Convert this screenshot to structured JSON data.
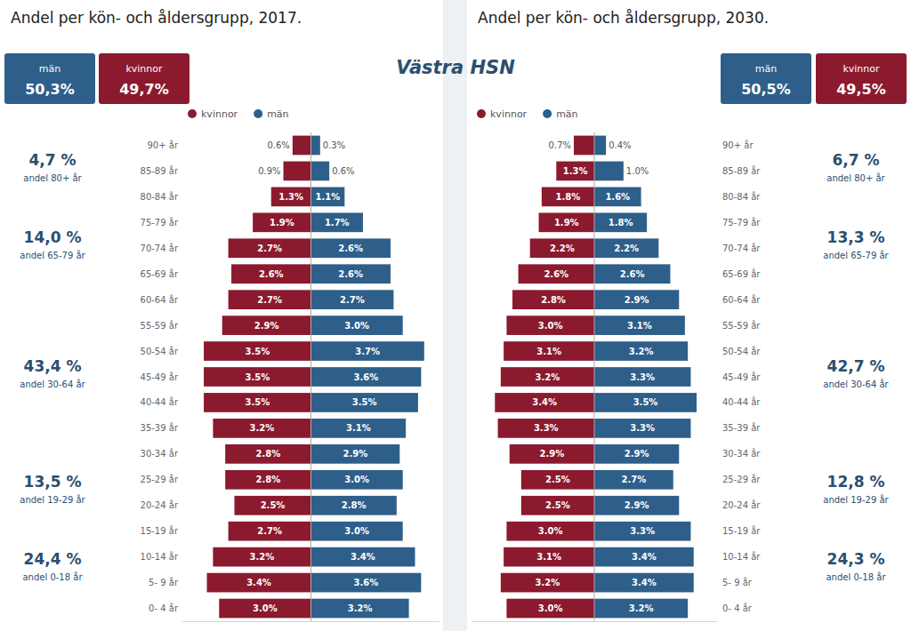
{
  "title": "Västra HSN",
  "chart_data": [
    {
      "type": "bar",
      "orientation": "horizontal",
      "title": "Andel per kön- och åldersgrupp, 2017.",
      "categories": [
        "90+ år",
        "85-89 år",
        "80-84 år",
        "75-79 år",
        "70-74 år",
        "65-69 år",
        "60-64 år",
        "55-59 år",
        "50-54 år",
        "45-49 år",
        "40-44 år",
        "35-39 år",
        "30-34 år",
        "25-29 år",
        "20-24 år",
        "15-19 år",
        "10-14 år",
        "5- 9 år",
        "0- 4 år"
      ],
      "series": [
        {
          "name": "kvinnor",
          "color": "#8B1A2E",
          "values": [
            0.6,
            0.9,
            1.3,
            1.9,
            2.7,
            2.6,
            2.7,
            2.9,
            3.5,
            3.5,
            3.5,
            3.2,
            2.8,
            2.8,
            2.5,
            2.7,
            3.2,
            3.4,
            3.0
          ],
          "value_labels": [
            "0.6%",
            "0.9%",
            "1.3%",
            "1.9%",
            "2.7%",
            "2.6%",
            "2.7%",
            "2.9%",
            "3.5%",
            "3.5%",
            "3.5%",
            "3.2%",
            "2.8%",
            "2.8%",
            "2.5%",
            "2.7%",
            "3.2%",
            "3.4%",
            "3.0%"
          ],
          "share": 49.7,
          "share_label": "49,7%"
        },
        {
          "name": "män",
          "color": "#2E5F8A",
          "values": [
            0.3,
            0.6,
            1.1,
            1.7,
            2.6,
            2.6,
            2.7,
            3.0,
            3.7,
            3.6,
            3.5,
            3.1,
            2.9,
            3.0,
            2.8,
            3.0,
            3.4,
            3.6,
            3.2
          ],
          "value_labels": [
            "0.3%",
            "0.6%",
            "1.1%",
            "1.7%",
            "2.6%",
            "2.6%",
            "2.7%",
            "3.0%",
            "3.7%",
            "3.6%",
            "3.5%",
            "3.1%",
            "2.9%",
            "3.0%",
            "2.8%",
            "3.0%",
            "3.4%",
            "3.6%",
            "3.2%"
          ],
          "share": 50.3,
          "share_label": "50,3%"
        }
      ],
      "annotations": [
        {
          "label": "andel 80+ år",
          "value": 4.7,
          "value_label": "4,7 %"
        },
        {
          "label": "andel 65-79 år",
          "value": 14.0,
          "value_label": "14,0 %"
        },
        {
          "label": "andel 30-64 år",
          "value": 43.4,
          "value_label": "43,4 %"
        },
        {
          "label": "andel 19-29 år",
          "value": 13.5,
          "value_label": "13,5 %"
        },
        {
          "label": "andel 0-18 år",
          "value": 24.4,
          "value_label": "24,4 %"
        }
      ],
      "xlim": [
        -4.2,
        4.2
      ],
      "tick_labels": false,
      "grid": false,
      "legend": "top",
      "data_labels": true
    },
    {
      "type": "bar",
      "orientation": "horizontal",
      "title": "Andel per kön- och åldersgrupp, 2030.",
      "categories": [
        "90+ år",
        "85-89 år",
        "80-84 år",
        "75-79 år",
        "70-74 år",
        "65-69 år",
        "60-64 år",
        "55-59 år",
        "50-54 år",
        "45-49 år",
        "40-44 år",
        "35-39 år",
        "30-34 år",
        "25-29 år",
        "20-24 år",
        "15-19 år",
        "10-14 år",
        "5- 9 år",
        "0- 4 år"
      ],
      "series": [
        {
          "name": "kvinnor",
          "color": "#8B1A2E",
          "values": [
            0.7,
            1.3,
            1.8,
            1.9,
            2.2,
            2.6,
            2.8,
            3.0,
            3.1,
            3.2,
            3.4,
            3.3,
            2.9,
            2.5,
            2.5,
            3.0,
            3.1,
            3.2,
            3.0
          ],
          "value_labels": [
            "0.7%",
            "1.3%",
            "1.8%",
            "1.9%",
            "2.2%",
            "2.6%",
            "2.8%",
            "3.0%",
            "3.1%",
            "3.2%",
            "3.4%",
            "3.3%",
            "2.9%",
            "2.5%",
            "2.5%",
            "3.0%",
            "3.1%",
            "3.2%",
            "3.0%"
          ],
          "share": 49.5,
          "share_label": "49,5%"
        },
        {
          "name": "män",
          "color": "#2E5F8A",
          "values": [
            0.4,
            1.0,
            1.6,
            1.8,
            2.2,
            2.6,
            2.9,
            3.1,
            3.2,
            3.3,
            3.5,
            3.3,
            2.9,
            2.7,
            2.9,
            3.3,
            3.4,
            3.4,
            3.2
          ],
          "value_labels": [
            "0.4%",
            "1.0%",
            "1.6%",
            "1.8%",
            "2.2%",
            "2.6%",
            "2.9%",
            "3.1%",
            "3.2%",
            "3.3%",
            "3.5%",
            "3.3%",
            "2.9%",
            "2.7%",
            "2.9%",
            "3.3%",
            "3.4%",
            "3.4%",
            "3.2%"
          ],
          "share": 50.5,
          "share_label": "50,5%"
        }
      ],
      "annotations": [
        {
          "label": "andel 80+ år",
          "value": 6.7,
          "value_label": "6,7 %"
        },
        {
          "label": "andel 65-79 år",
          "value": 13.3,
          "value_label": "13,3 %"
        },
        {
          "label": "andel 30-64 år",
          "value": 42.7,
          "value_label": "42,7 %"
        },
        {
          "label": "andel 19-29 år",
          "value": 12.8,
          "value_label": "12,8 %"
        },
        {
          "label": "andel 0-18 år",
          "value": 24.3,
          "value_label": "24,3 %"
        }
      ],
      "xlim": [
        -4.2,
        4.2
      ],
      "tick_labels": false,
      "grid": false,
      "legend": "top",
      "data_labels": true
    }
  ]
}
